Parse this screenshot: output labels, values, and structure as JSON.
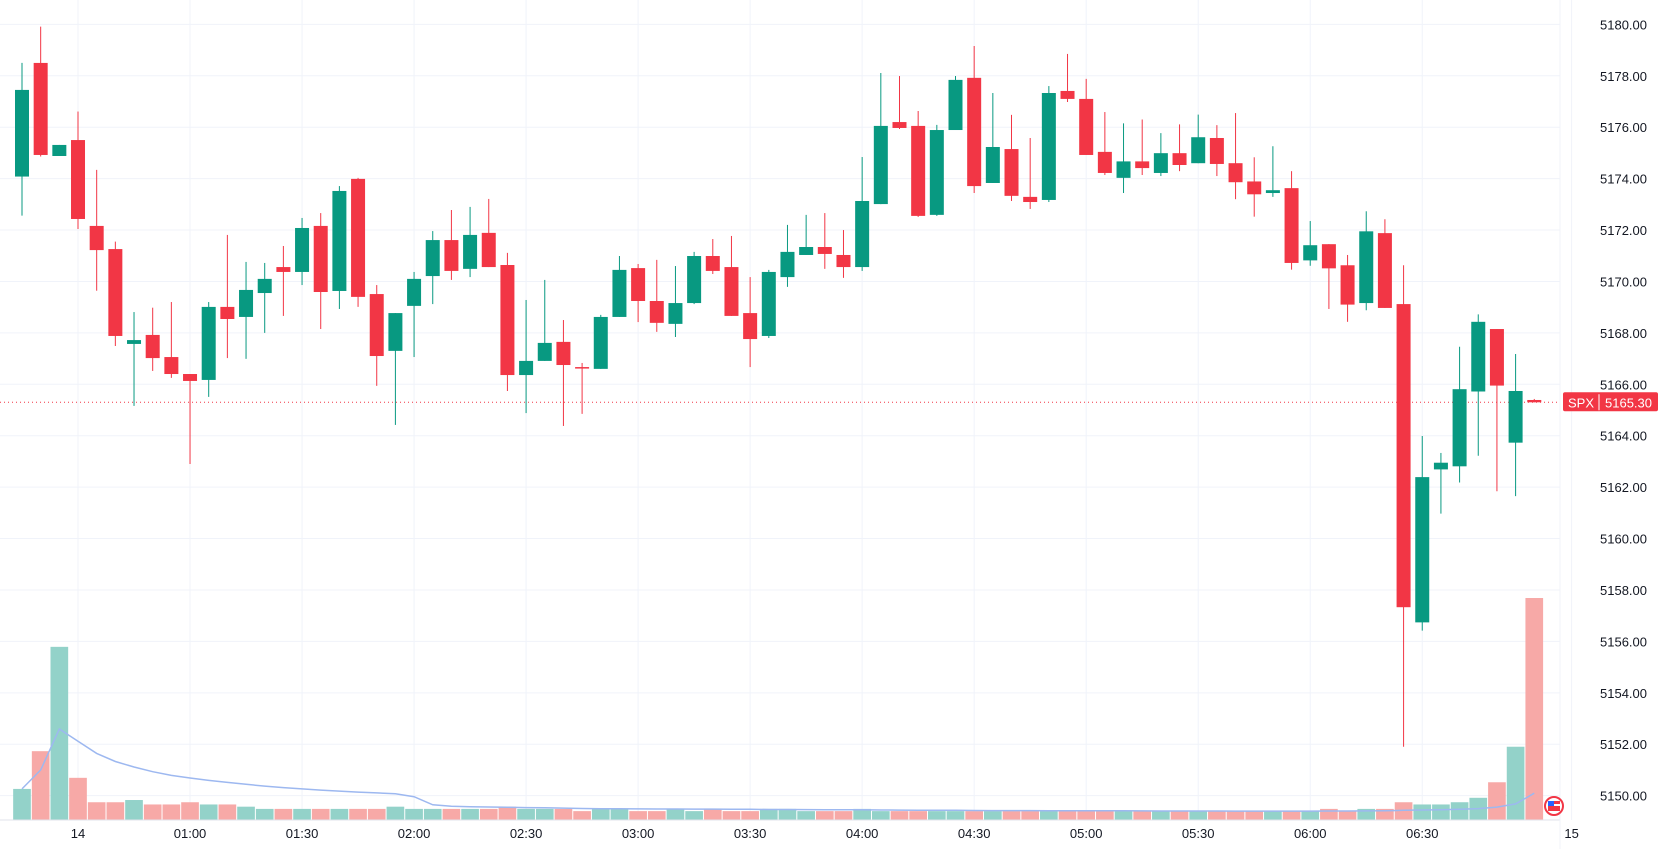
{
  "chart_data": {
    "type": "candlestick",
    "symbol": "SPX",
    "last_price": "5165.30",
    "last_price_value": 5165.3,
    "colors": {
      "up": "#089981",
      "down": "#f23645",
      "volume_up": "#93d2c9",
      "volume_down": "#f7a9a7",
      "volume_ma": "#9db8f0",
      "grid": "#f0f3fa"
    },
    "ylim": [
      5149.2,
      5180.9
    ],
    "y_ticks": [
      "5150.00",
      "5152.00",
      "5154.00",
      "5156.00",
      "5158.00",
      "5160.00",
      "5162.00",
      "5164.00",
      "5166.00",
      "5168.00",
      "5170.00",
      "5172.00",
      "5174.00",
      "5176.00",
      "5178.00",
      "5180.00"
    ],
    "y_tick_values": [
      5150,
      5152,
      5154,
      5156,
      5158,
      5160,
      5162,
      5164,
      5166,
      5168,
      5170,
      5172,
      5174,
      5176,
      5178,
      5180
    ],
    "x_ticks": [
      {
        "label": "14",
        "bar": 3
      },
      {
        "label": "01:00",
        "bar": 9
      },
      {
        "label": "01:30",
        "bar": 15
      },
      {
        "label": "02:00",
        "bar": 21
      },
      {
        "label": "02:30",
        "bar": 27
      },
      {
        "label": "03:00",
        "bar": 33
      },
      {
        "label": "03:30",
        "bar": 39
      },
      {
        "label": "04:00",
        "bar": 45
      },
      {
        "label": "04:30",
        "bar": 51
      },
      {
        "label": "05:00",
        "bar": 57
      },
      {
        "label": "05:30",
        "bar": 63
      },
      {
        "label": "06:00",
        "bar": 69
      },
      {
        "label": "06:30",
        "bar": 75
      },
      {
        "label": "15",
        "bar": 83
      }
    ],
    "ohlc_columns": [
      "open",
      "high",
      "low",
      "close"
    ],
    "ohlc": [
      [
        5174.08,
        5178.5,
        5172.56,
        5177.45
      ],
      [
        5178.5,
        5179.91,
        5174.86,
        5174.92
      ],
      [
        5174.88,
        5175.31,
        5174.88,
        5175.31
      ],
      [
        5175.5,
        5176.61,
        5172.04,
        5172.43
      ],
      [
        5172.16,
        5174.34,
        5169.64,
        5171.22
      ],
      [
        5171.26,
        5171.55,
        5167.49,
        5167.88
      ],
      [
        5167.57,
        5168.81,
        5165.16,
        5167.72
      ],
      [
        5167.92,
        5168.98,
        5166.52,
        5167.02
      ],
      [
        5167.06,
        5169.2,
        5166.25,
        5166.4
      ],
      [
        5166.4,
        5166.4,
        5162.9,
        5166.13
      ],
      [
        5166.17,
        5169.2,
        5165.51,
        5169.01
      ],
      [
        5169.01,
        5171.81,
        5167.02,
        5168.54
      ],
      [
        5168.62,
        5170.76,
        5166.99,
        5169.67
      ],
      [
        5169.55,
        5170.72,
        5168.0,
        5170.1
      ],
      [
        5170.56,
        5171.38,
        5168.66,
        5170.37
      ],
      [
        5170.37,
        5172.47,
        5169.86,
        5172.08
      ],
      [
        5172.16,
        5172.66,
        5168.15,
        5169.59
      ],
      [
        5169.63,
        5173.71,
        5168.93,
        5173.52
      ],
      [
        5173.99,
        5174.03,
        5169.01,
        5169.4
      ],
      [
        5169.51,
        5169.86,
        5165.94,
        5167.1
      ],
      [
        5167.3,
        5168.77,
        5164.42,
        5168.77
      ],
      [
        5169.05,
        5170.37,
        5167.06,
        5170.1
      ],
      [
        5170.21,
        5171.96,
        5169.12,
        5171.61
      ],
      [
        5171.61,
        5172.78,
        5170.06,
        5170.41
      ],
      [
        5170.49,
        5172.9,
        5170.17,
        5171.81
      ],
      [
        5171.89,
        5173.21,
        5170.56,
        5170.56
      ],
      [
        5170.64,
        5171.11,
        5165.74,
        5166.36
      ],
      [
        5166.36,
        5169.28,
        5164.88,
        5166.91
      ],
      [
        5166.91,
        5170.06,
        5166.91,
        5167.61
      ],
      [
        5167.65,
        5168.5,
        5164.38,
        5166.75
      ],
      [
        5166.67,
        5166.83,
        5164.85,
        5166.65
      ],
      [
        5166.6,
        5168.7,
        5166.6,
        5168.62
      ],
      [
        5168.62,
        5170.99,
        5168.62,
        5170.45
      ],
      [
        5170.52,
        5170.68,
        5168.42,
        5169.24
      ],
      [
        5169.24,
        5170.84,
        5168.04,
        5168.39
      ],
      [
        5168.35,
        5170.6,
        5167.84,
        5169.16
      ],
      [
        5169.16,
        5171.15,
        5169.12,
        5170.99
      ],
      [
        5170.99,
        5171.65,
        5170.29,
        5170.41
      ],
      [
        5170.56,
        5171.77,
        5168.66,
        5168.66
      ],
      [
        5168.77,
        5170.17,
        5166.67,
        5167.76
      ],
      [
        5167.88,
        5170.45,
        5167.8,
        5170.37
      ],
      [
        5170.17,
        5172.2,
        5169.79,
        5171.15
      ],
      [
        5171.03,
        5172.59,
        5171.03,
        5171.34
      ],
      [
        5171.34,
        5172.66,
        5170.49,
        5171.07
      ],
      [
        5171.03,
        5172.0,
        5170.14,
        5170.56
      ],
      [
        5170.56,
        5174.84,
        5170.41,
        5173.13
      ],
      [
        5173.01,
        5178.11,
        5173.01,
        5176.05
      ],
      [
        5176.2,
        5177.99,
        5175.93,
        5175.97
      ],
      [
        5176.05,
        5176.63,
        5172.51,
        5172.55
      ],
      [
        5172.59,
        5176.09,
        5172.55,
        5175.89
      ],
      [
        5175.89,
        5177.99,
        5175.89,
        5177.84
      ],
      [
        5177.92,
        5179.16,
        5173.44,
        5173.71
      ],
      [
        5173.83,
        5177.33,
        5173.83,
        5175.23
      ],
      [
        5175.15,
        5176.48,
        5173.13,
        5173.33
      ],
      [
        5173.29,
        5175.58,
        5172.82,
        5173.09
      ],
      [
        5173.17,
        5177.6,
        5173.09,
        5177.33
      ],
      [
        5177.41,
        5178.85,
        5176.98,
        5177.1
      ],
      [
        5177.1,
        5177.88,
        5174.92,
        5174.92
      ],
      [
        5175.04,
        5176.59,
        5174.14,
        5174.22
      ],
      [
        5174.03,
        5176.15,
        5173.44,
        5174.67
      ],
      [
        5174.67,
        5176.3,
        5174.14,
        5174.41
      ],
      [
        5174.22,
        5175.77,
        5174.1,
        5174.99
      ],
      [
        5174.99,
        5176.11,
        5174.29,
        5174.53
      ],
      [
        5174.6,
        5176.49,
        5174.6,
        5175.61
      ],
      [
        5175.58,
        5176.08,
        5174.1,
        5174.57
      ],
      [
        5174.6,
        5176.55,
        5173.2,
        5173.86
      ],
      [
        5173.89,
        5174.83,
        5172.52,
        5173.39
      ],
      [
        5173.44,
        5175.26,
        5173.29,
        5173.55
      ],
      [
        5173.63,
        5174.29,
        5170.46,
        5170.72
      ],
      [
        5170.82,
        5172.35,
        5170.61,
        5171.41
      ],
      [
        5171.45,
        5171.45,
        5168.93,
        5170.51
      ],
      [
        5170.63,
        5171.03,
        5168.43,
        5169.1
      ],
      [
        5169.16,
        5172.73,
        5168.88,
        5171.95
      ],
      [
        5171.88,
        5172.42,
        5168.97,
        5168.97
      ],
      [
        5169.12,
        5170.63,
        5151.9,
        5157.33
      ],
      [
        5156.74,
        5163.99,
        5156.42,
        5162.39
      ],
      [
        5162.69,
        5163.33,
        5160.97,
        5162.95
      ],
      [
        5162.81,
        5167.46,
        5162.18,
        5165.81
      ],
      [
        5165.72,
        5168.72,
        5163.22,
        5168.43
      ],
      [
        5168.15,
        5168.15,
        5161.84,
        5165.95
      ],
      [
        5163.73,
        5167.18,
        5161.65,
        5165.74
      ],
      [
        5165.39,
        5165.43,
        5165.3,
        5165.3
      ]
    ],
    "volume_relative": [
      14,
      31,
      78,
      19,
      8,
      8,
      9,
      7,
      7,
      8,
      7,
      7,
      6,
      5,
      5,
      5,
      5,
      5,
      5,
      5,
      6,
      5,
      5,
      5,
      5,
      5,
      6,
      5,
      5,
      5,
      4,
      5,
      5,
      4,
      4,
      5,
      4,
      5,
      4,
      4,
      5,
      5,
      4,
      4,
      4,
      5,
      4,
      4,
      4,
      4,
      4,
      4,
      4,
      4,
      4,
      4,
      4,
      4,
      4,
      4,
      4,
      4,
      4,
      4,
      4,
      4,
      4,
      4,
      4,
      4,
      5,
      4,
      5,
      5,
      8,
      7,
      7,
      8,
      10,
      17,
      33,
      100
    ],
    "grid": true
  }
}
